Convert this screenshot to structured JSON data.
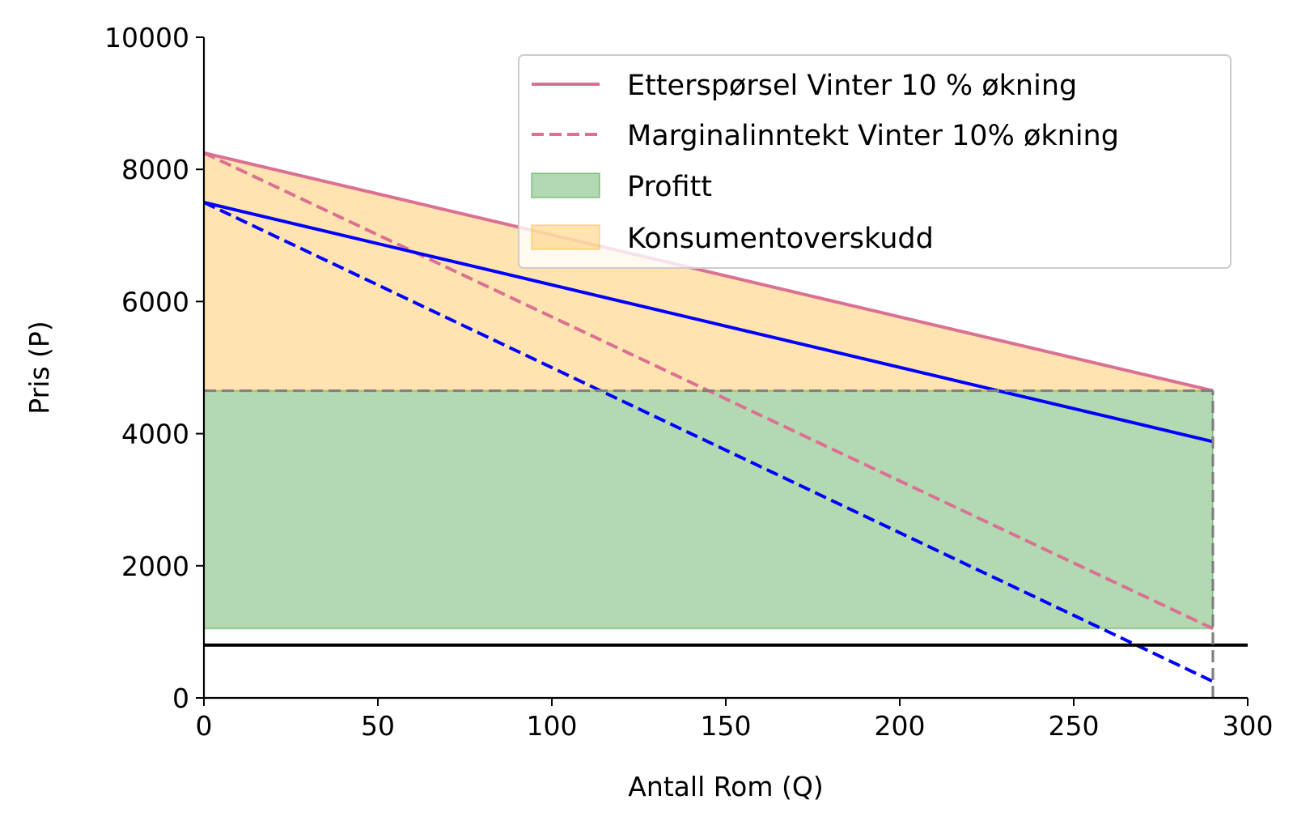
{
  "chart_data": {
    "type": "line",
    "title": "",
    "xlabel": "Antall Rom (Q)",
    "ylabel": "Pris (P)",
    "xlim": [
      0,
      300
    ],
    "ylim": [
      0,
      10000
    ],
    "xticks": [
      0,
      50,
      100,
      150,
      200,
      250,
      300
    ],
    "yticks": [
      0,
      2000,
      4000,
      6000,
      8000,
      10000
    ],
    "grid": false,
    "legend_position": "top-right",
    "series": [
      {
        "name": "Etterspørsel Vinter 10 % økning",
        "style": "solid",
        "color": "#db7093",
        "x": [
          0,
          290
        ],
        "y": [
          8250,
          4650
        ]
      },
      {
        "name": "Marginalinntekt Vinter 10% økning",
        "style": "dashed",
        "color": "#db7093",
        "x": [
          0,
          290
        ],
        "y": [
          8250,
          1050
        ]
      },
      {
        "name": "",
        "style": "solid",
        "color": "#0000ff",
        "x": [
          0,
          290
        ],
        "y": [
          7500,
          3880
        ]
      },
      {
        "name": "",
        "style": "dashed",
        "color": "#0000ff",
        "x": [
          0,
          290
        ],
        "y": [
          7500,
          250
        ]
      },
      {
        "name": "",
        "style": "solid",
        "color": "#000000",
        "x": [
          0,
          300
        ],
        "y": [
          800,
          800
        ]
      },
      {
        "name": "",
        "style": "dashed",
        "color": "#808080",
        "x": [
          0,
          290
        ],
        "y": [
          4650,
          4650
        ]
      },
      {
        "name": "",
        "style": "dashed",
        "color": "#808080",
        "x": [
          290,
          290
        ],
        "y": [
          0,
          4650
        ]
      }
    ],
    "areas": [
      {
        "name": "Profitt",
        "color": "#008000",
        "opacity": 0.3,
        "x": [
          0,
          290
        ],
        "y_low": 1050,
        "y_high": 4650
      },
      {
        "name": "Konsumentoverskudd",
        "color": "#ffa500",
        "opacity": 0.3,
        "x": [
          0,
          290
        ],
        "y_base": 4650,
        "y_top": [
          8250,
          4650
        ]
      }
    ]
  }
}
